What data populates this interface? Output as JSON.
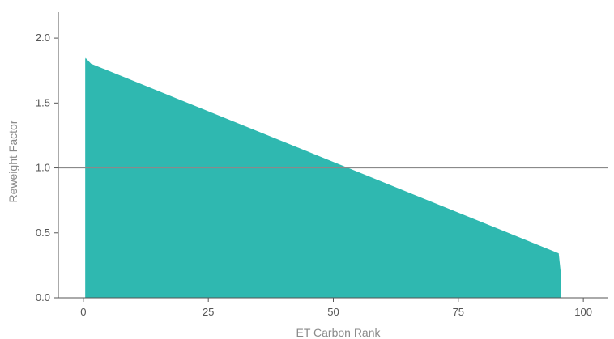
{
  "chart_data": {
    "type": "area",
    "title": "",
    "xlabel": "ET Carbon Rank",
    "ylabel": "Reweight Factor",
    "xlim": [
      -5,
      105
    ],
    "ylim": [
      0,
      2.2
    ],
    "x_ticks": [
      0,
      25,
      50,
      75,
      100
    ],
    "y_ticks": [
      0.0,
      0.5,
      1.0,
      1.5,
      2.0
    ],
    "x_tick_labels": [
      "0",
      "25",
      "50",
      "75",
      "100"
    ],
    "y_tick_labels": [
      "0.0",
      "0.5",
      "1.0",
      "1.5",
      "2.0"
    ],
    "reference_line": {
      "y": 1.0
    },
    "grid": false,
    "legend": "none",
    "colors": {
      "area": "#2fb8b0",
      "reference": "#8a8a8a",
      "axis": "#555555"
    },
    "series": [
      {
        "x": [
          0.5,
          0.5,
          1.5,
          95.0,
          95.5,
          95.5
        ],
        "y": [
          0.0,
          1.84,
          1.8,
          0.34,
          0.16,
          0.0
        ]
      }
    ]
  }
}
